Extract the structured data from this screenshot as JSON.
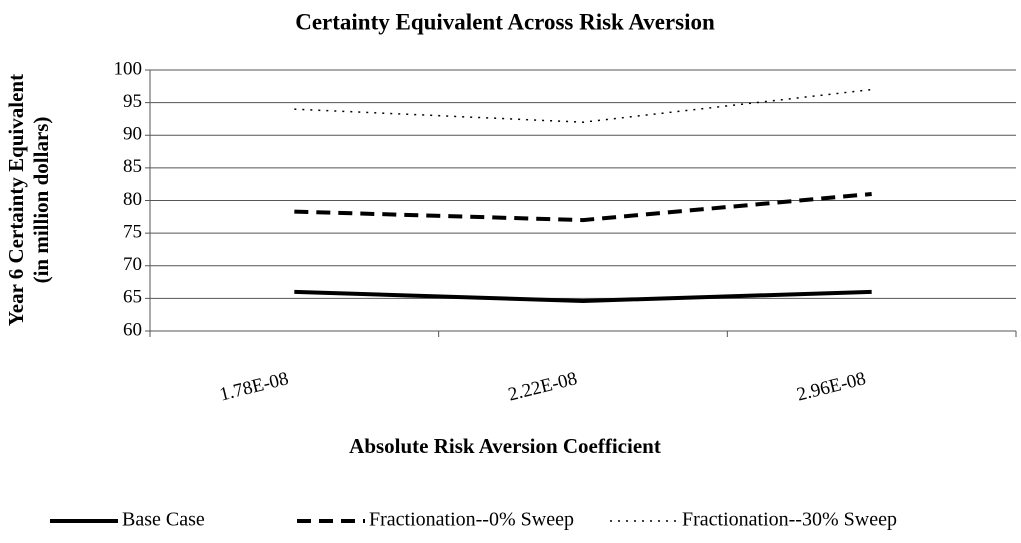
{
  "chart_data": {
    "type": "line",
    "title": "Certainty Equivalent Across Risk Aversion",
    "xlabel": "Absolute Risk Aversion Coefficient",
    "ylabel": [
      "Year 6 Certainty Equivalent",
      "(in million dollars)"
    ],
    "categories": [
      "1.78E-08",
      "2.22E-08",
      "2.96E-08"
    ],
    "series": [
      {
        "name": "Base Case",
        "color": "#000000",
        "style": "solid",
        "values": [
          66,
          64.6,
          66
        ]
      },
      {
        "name": "Fractionation--0% Sweep",
        "color": "#000000",
        "style": "dashed",
        "values": [
          78.3,
          77,
          81
        ]
      },
      {
        "name": "Fractionation--30% Sweep",
        "color": "#000000",
        "style": "dotted",
        "values": [
          94,
          92,
          97
        ]
      }
    ],
    "ylim": [
      60,
      100
    ],
    "yticks": [
      60,
      65,
      70,
      75,
      80,
      85,
      90,
      95,
      100
    ],
    "grid": true
  }
}
